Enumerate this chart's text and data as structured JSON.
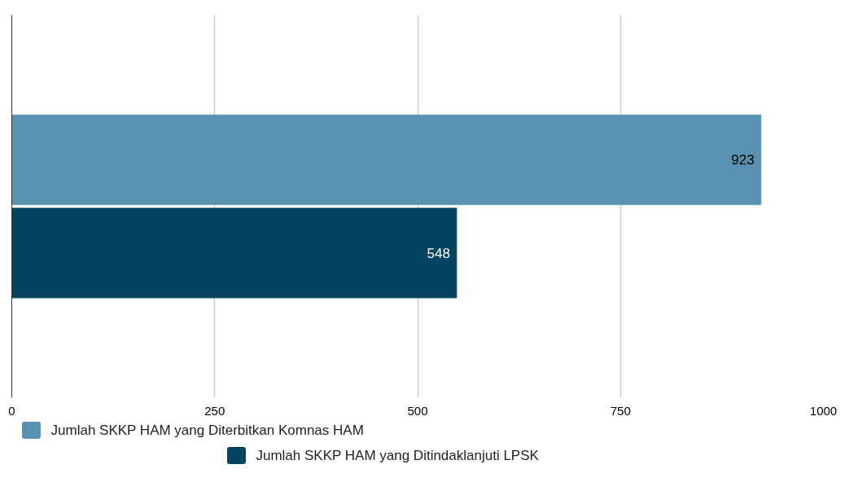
{
  "chart_data": {
    "type": "bar",
    "orientation": "horizontal",
    "categories": [
      null
    ],
    "series": [
      {
        "name": "Jumlah SKKP HAM yang Diterbitkan Komnas HAM",
        "color": "#5892b0",
        "values": [
          923
        ]
      },
      {
        "name": "Jumlah SKKP HAM yang Ditindaklanjuti LPSK",
        "color": "#02445f",
        "values": [
          548
        ]
      }
    ],
    "xlim": [
      0,
      1000
    ],
    "xticks": [
      0,
      250,
      500,
      750,
      1000
    ],
    "grid": "x",
    "legend": "bottom",
    "data_labels": true
  }
}
